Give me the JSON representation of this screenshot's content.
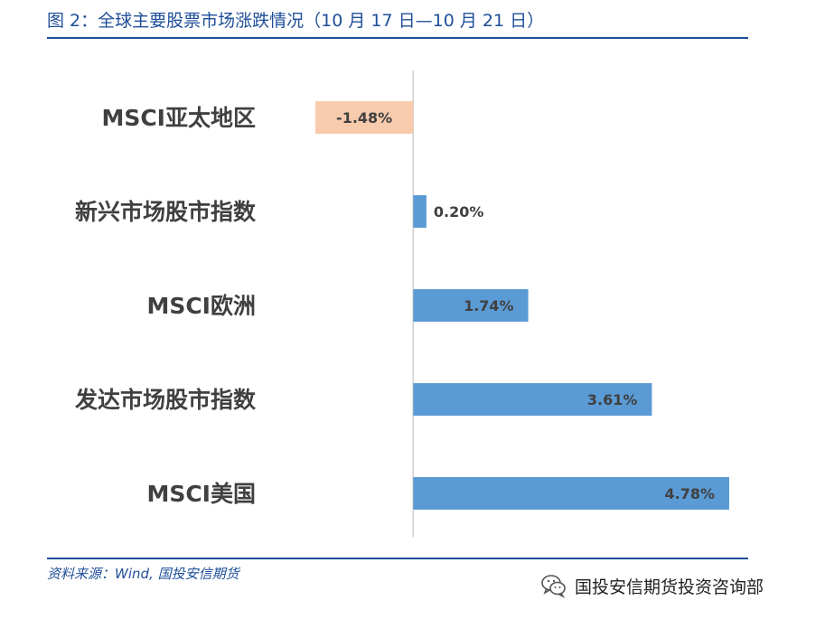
{
  "header": {
    "title": "图 2：全球主要股票市场涨跌情况（10 月 17 日—10 月 21 日）"
  },
  "footer": {
    "source": "资料来源：Wind, 国投安信期货",
    "watermark": "国投安信期货投资咨询部",
    "watermark_icon": "wechat-icon"
  },
  "colors": {
    "title": "#1f4e99",
    "positive_bar": "#5b9bd5",
    "negative_bar": "#f8cbad",
    "label_text": "#404040",
    "axis_line": "#d0d0d0"
  },
  "chart_data": {
    "type": "bar",
    "orientation": "horizontal",
    "categories": [
      "MSCI亚太地区",
      "新兴市场股市指数",
      "MSCI欧洲",
      "发达市场股市指数",
      "MSCI美国"
    ],
    "values": [
      -1.48,
      0.2,
      1.74,
      3.61,
      4.78
    ],
    "value_labels": [
      "-1.48%",
      "0.20%",
      "1.74%",
      "3.61%",
      "4.78%"
    ],
    "unit": "%",
    "xlim": [
      -1.48,
      4.78
    ],
    "grid": false,
    "legend": "none"
  }
}
